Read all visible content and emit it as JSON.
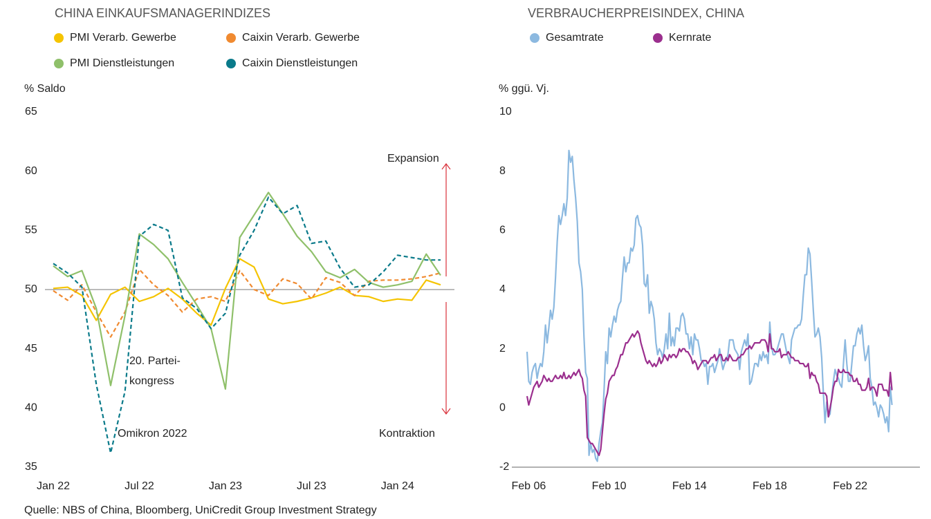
{
  "chart_data": [
    {
      "type": "line",
      "title": "CHINA EINKAUFSMANAGERINDIZES",
      "ylabel": "% Saldo",
      "categories": [
        "Jan 22",
        null,
        null,
        null,
        null,
        null,
        "Jul 22",
        null,
        null,
        null,
        null,
        null,
        "Jan 23",
        null,
        null,
        null,
        null,
        null,
        "Jul 23",
        null,
        null,
        null,
        null,
        null,
        "Jan 24",
        null,
        null,
        null
      ],
      "series": [
        {
          "name": "PMI Verarb. Gewerbe",
          "color": "#f5c400",
          "dashed": false,
          "values": [
            50.1,
            50.2,
            49.5,
            47.4,
            49.6,
            50.2,
            49.0,
            49.4,
            50.1,
            49.2,
            48.0,
            47.0,
            50.1,
            52.6,
            51.9,
            49.2,
            48.8,
            49.0,
            49.3,
            49.7,
            50.2,
            49.5,
            49.4,
            49.0,
            49.2,
            49.1,
            50.8,
            50.4
          ]
        },
        {
          "name": "Caixin Verarb. Gewerbe",
          "color": "#f08a30",
          "dashed": true,
          "values": [
            49.9,
            49.1,
            50.4,
            48.1,
            46.0,
            48.1,
            51.7,
            50.4,
            49.5,
            48.1,
            49.2,
            49.4,
            49.0,
            51.6,
            50.0,
            49.5,
            50.9,
            50.5,
            49.2,
            51.0,
            50.6,
            49.5,
            50.7,
            50.8,
            50.8,
            50.9,
            51.1,
            51.4
          ]
        },
        {
          "name": "PMI Dienstleistungen",
          "color": "#8fc06a",
          "dashed": false,
          "values": [
            52.0,
            51.1,
            51.6,
            48.4,
            41.9,
            47.8,
            54.7,
            53.8,
            52.6,
            50.6,
            48.7,
            46.7,
            41.6,
            54.4,
            56.3,
            58.2,
            56.4,
            54.5,
            53.2,
            51.5,
            51.0,
            51.7,
            50.6,
            50.2,
            50.4,
            50.7,
            53.0,
            51.2
          ]
        },
        {
          "name": "Caixin Dienstleistungen",
          "color": "#0a7a8a",
          "dashed": true,
          "values": [
            52.2,
            51.4,
            50.2,
            42.0,
            36.2,
            41.4,
            54.5,
            55.5,
            55.0,
            49.3,
            48.4,
            46.7,
            48.0,
            52.9,
            55.0,
            57.8,
            56.4,
            57.1,
            53.9,
            54.1,
            51.8,
            50.2,
            50.4,
            51.5,
            52.9,
            52.7,
            52.5,
            52.5
          ]
        }
      ],
      "ylim": [
        35,
        65
      ],
      "yticks": [
        35,
        40,
        45,
        50,
        55,
        60,
        65
      ],
      "reference_line": 50,
      "grid": false,
      "annotations": [
        "Expansion",
        "Kontraktion",
        "20. Partei-",
        "kongress",
        "Omikron 2022"
      ]
    },
    {
      "type": "line",
      "title": "VERBRAUCHERPREISINDEX, CHINA",
      "ylabel": "% ggü. Vj.",
      "categories": [
        null,
        "Feb 06",
        null,
        null,
        null,
        null,
        null,
        null,
        null,
        null,
        null,
        null,
        null,
        null,
        null,
        null,
        null,
        null,
        null,
        null,
        null,
        null,
        null,
        null,
        null,
        null,
        null,
        null,
        null,
        null,
        null,
        null,
        null,
        null,
        null,
        null,
        null,
        null,
        null,
        null,
        null,
        null,
        null,
        null,
        null,
        null,
        null,
        null,
        null,
        "Feb 10",
        null,
        null,
        null,
        null,
        null,
        null,
        null,
        null,
        null,
        null,
        null,
        null,
        null,
        null,
        null,
        null,
        null,
        null,
        null,
        null,
        null,
        null,
        null,
        null,
        null,
        null,
        null,
        null,
        null,
        null,
        null,
        null,
        null,
        null,
        null,
        null,
        null,
        null,
        null,
        null,
        null,
        null,
        null,
        null,
        null,
        null,
        null,
        "Feb 14",
        null,
        null,
        null,
        null,
        null,
        null,
        null,
        null,
        null,
        null,
        null,
        null,
        null,
        null,
        null,
        null,
        null,
        null,
        null,
        null,
        null,
        null,
        null,
        null,
        null,
        null,
        null,
        null,
        null,
        null,
        null,
        null,
        null,
        null,
        null,
        null,
        null,
        null,
        null,
        null,
        null,
        null,
        null,
        null,
        null,
        null,
        null,
        "Feb 18",
        null,
        null,
        null,
        null,
        null,
        null,
        null,
        null,
        null,
        null,
        null,
        null,
        null,
        null,
        null,
        null,
        null,
        null,
        null,
        null,
        null,
        null,
        null,
        null,
        null,
        null,
        null,
        null,
        null,
        null,
        null,
        null,
        null,
        null,
        null,
        null,
        null,
        null,
        null,
        null,
        null,
        null,
        null,
        null,
        null,
        null,
        null,
        "Feb 22",
        null,
        null,
        null,
        null,
        null,
        null,
        null,
        null,
        null,
        null,
        null,
        null,
        null,
        null,
        null,
        null,
        null,
        null,
        null,
        null,
        null,
        null,
        null,
        null,
        null
      ],
      "series": [
        {
          "name": "Gesamtrate",
          "color": "#8cb9e0",
          "values": [
            1.9,
            0.9,
            0.8,
            1.2,
            1.4,
            1.5,
            1.0,
            1.3,
            1.5,
            1.4,
            1.9,
            2.8,
            2.2,
            2.7,
            3.3,
            3.0,
            3.4,
            4.4,
            5.6,
            6.5,
            6.2,
            6.5,
            6.9,
            6.5,
            7.1,
            8.7,
            8.3,
            8.5,
            7.7,
            7.1,
            6.3,
            4.9,
            4.6,
            4.0,
            2.4,
            1.2,
            1.0,
            -1.6,
            -1.2,
            -1.5,
            -1.4,
            -1.7,
            -1.8,
            -1.2,
            -0.8,
            -0.5,
            0.6,
            1.9,
            1.5,
            2.7,
            2.4,
            2.8,
            3.1,
            2.9,
            3.3,
            3.5,
            3.6,
            4.4,
            5.1,
            4.6,
            4.9,
            4.9,
            5.4,
            5.3,
            5.5,
            6.4,
            6.5,
            6.2,
            6.1,
            5.5,
            4.2,
            4.1,
            4.5,
            3.2,
            3.6,
            3.4,
            3.0,
            2.2,
            1.8,
            2.0,
            1.9,
            1.7,
            2.0,
            2.5,
            2.0,
            3.2,
            2.1,
            2.4,
            2.1,
            2.7,
            2.7,
            2.6,
            3.1,
            3.2,
            3.0,
            2.5,
            2.5,
            2.0,
            2.4,
            1.8,
            2.5,
            2.3,
            2.3,
            2.0,
            1.6,
            1.6,
            1.4,
            1.5,
            0.8,
            1.4,
            1.4,
            1.5,
            1.2,
            1.4,
            1.6,
            2.0,
            1.6,
            1.3,
            1.5,
            1.6,
            1.8,
            2.3,
            2.3,
            2.3,
            2.0,
            1.9,
            1.8,
            1.3,
            1.9,
            2.1,
            2.3,
            2.1,
            2.5,
            0.8,
            0.9,
            1.2,
            1.5,
            1.5,
            1.4,
            1.8,
            1.6,
            1.9,
            1.7,
            1.8,
            1.5,
            2.9,
            2.1,
            1.8,
            1.8,
            1.9,
            2.1,
            2.3,
            2.5,
            2.5,
            2.2,
            1.9,
            1.7,
            1.5,
            2.3,
            2.5,
            2.7,
            2.7,
            2.8,
            2.8,
            3.0,
            3.8,
            4.5,
            4.5,
            5.4,
            5.2,
            4.3,
            3.3,
            2.4,
            2.5,
            2.7,
            2.4,
            1.7,
            0.5,
            -0.5,
            0.2,
            -0.3,
            -0.2,
            0.4,
            0.9,
            1.3,
            1.1,
            1.0,
            0.8,
            0.7,
            1.5,
            2.3,
            1.5,
            0.9,
            0.9,
            1.5,
            2.1,
            2.1,
            2.5,
            2.7,
            2.5,
            2.8,
            2.1,
            1.6,
            1.8,
            2.1,
            1.0,
            0.7,
            0.1,
            0.2,
            0.0,
            -0.3,
            0.1,
            0.0,
            -0.2,
            -0.5,
            -0.3,
            -0.8,
            0.7,
            0.1
          ]
        },
        {
          "name": "Kernrate",
          "color": "#9b2f8e",
          "values": [
            0.4,
            0.1,
            0.3,
            0.5,
            0.7,
            0.8,
            0.9,
            0.7,
            0.8,
            0.9,
            1.1,
            1.0,
            0.9,
            1.0,
            0.9,
            0.9,
            1.0,
            1.1,
            1.0,
            1.0,
            1.1,
            1.0,
            1.2,
            1.0,
            1.0,
            1.1,
            1.0,
            1.1,
            1.2,
            1.1,
            1.2,
            1.3,
            1.1,
            1.0,
            0.6,
            0.4,
            -1.0,
            -1.1,
            -1.2,
            -1.2,
            -1.3,
            -1.4,
            -1.5,
            -1.6,
            -1.4,
            -0.8,
            -0.2,
            0.3,
            0.5,
            0.9,
            1.0,
            1.1,
            1.1,
            1.3,
            1.4,
            1.6,
            1.8,
            1.8,
            2.0,
            2.2,
            2.2,
            2.3,
            2.4,
            2.5,
            2.4,
            2.5,
            2.6,
            2.5,
            2.2,
            2.0,
            1.8,
            1.6,
            1.5,
            1.6,
            1.5,
            1.4,
            1.5,
            1.4,
            1.5,
            1.7,
            1.5,
            1.6,
            1.8,
            1.7,
            1.6,
            1.8,
            1.7,
            1.8,
            1.8,
            1.7,
            1.8,
            2.0,
            1.9,
            2.0,
            2.0,
            1.9,
            1.9,
            1.8,
            1.7,
            1.5,
            1.6,
            1.5,
            1.3,
            1.4,
            1.5,
            1.6,
            1.6,
            1.6,
            1.5,
            1.6,
            1.7,
            1.7,
            1.8,
            1.6,
            1.7,
            1.8,
            1.8,
            1.6,
            1.6,
            1.7,
            1.6,
            1.8,
            1.7,
            1.6,
            1.6,
            1.6,
            1.7,
            1.7,
            1.8,
            1.8,
            1.9,
            2.0,
            2.0,
            2.1,
            2.0,
            2.1,
            2.2,
            2.2,
            2.2,
            2.2,
            2.3,
            2.3,
            2.3,
            2.2,
            1.9,
            2.5,
            2.0,
            2.0,
            1.9,
            1.9,
            1.9,
            2.0,
            1.7,
            1.8,
            1.8,
            1.8,
            1.9,
            1.8,
            1.7,
            1.7,
            1.6,
            1.6,
            1.6,
            1.5,
            1.5,
            1.5,
            1.4,
            1.4,
            1.5,
            1.0,
            1.2,
            1.1,
            1.1,
            0.9,
            0.8,
            0.5,
            0.5,
            0.5,
            0.5,
            0.4,
            -0.3,
            0.0,
            0.3,
            0.7,
            0.9,
            0.9,
            1.3,
            1.2,
            1.2,
            1.3,
            1.2,
            1.2,
            1.2,
            1.1,
            1.1,
            0.9,
            0.9,
            1.0,
            0.8,
            0.8,
            0.6,
            0.6,
            0.6,
            0.7,
            1.0,
            0.6,
            0.7,
            0.7,
            0.6,
            0.4,
            0.8,
            0.8,
            0.8,
            0.6,
            0.6,
            0.6,
            0.4,
            1.2,
            0.6
          ]
        }
      ],
      "ylim": [
        -2,
        10
      ],
      "yticks": [
        -2,
        0,
        2,
        4,
        6,
        8,
        10
      ],
      "grid": false
    }
  ],
  "source": "Quelle: NBS of China, Bloomberg, UniCredit Group Investment Strategy"
}
